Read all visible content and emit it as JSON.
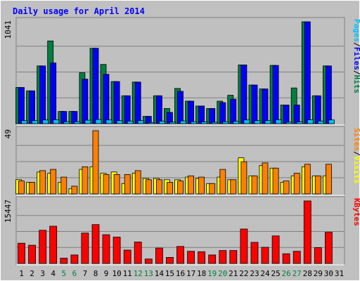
{
  "chart_data": {
    "type": "bar",
    "title": "Daily usage for April 2014",
    "days": [
      "1",
      "2",
      "3",
      "4",
      "5",
      "6",
      "7",
      "8",
      "9",
      "10",
      "11",
      "12",
      "13",
      "14",
      "15",
      "16",
      "17",
      "18",
      "19",
      "20",
      "21",
      "22",
      "23",
      "24",
      "25",
      "26",
      "27",
      "28",
      "29",
      "30",
      "31"
    ],
    "weekend_days": [
      "5",
      "6",
      "12",
      "13",
      "19",
      "20",
      "26",
      "27"
    ],
    "panels": [
      {
        "name": "hits-files-pages",
        "max_label": "1041",
        "max_value": 1041,
        "legend": [
          "Pages",
          "/",
          "Files",
          "/",
          "Hits"
        ],
        "legend_colors": [
          "#00c0ff",
          "#000000",
          "#0000ff",
          "#000000",
          "#008040"
        ],
        "series": [
          {
            "name": "Hits",
            "color": "#008040",
            "values": [
              370,
              335,
              590,
              845,
              125,
              125,
              520,
              770,
              605,
              430,
              285,
              425,
              75,
              285,
              155,
              360,
              230,
              180,
              155,
              230,
              290,
              600,
              395,
              355,
              595,
              190,
              365,
              1041,
              285,
              590,
              0
            ]
          },
          {
            "name": "Files",
            "color": "#0000ff",
            "values": [
              370,
              335,
              590,
              620,
              125,
              125,
              455,
              770,
              505,
              430,
              285,
              425,
              75,
              285,
              115,
              330,
              230,
              180,
              155,
              215,
              250,
              600,
              395,
              355,
              595,
              190,
              190,
              1041,
              285,
              590,
              0
            ]
          },
          {
            "name": "Pages",
            "color": "#00c0ff",
            "values": [
              30,
              30,
              38,
              40,
              20,
              20,
              35,
              42,
              38,
              30,
              25,
              30,
              12,
              25,
              16,
              28,
              20,
              18,
              14,
              20,
              24,
              38,
              30,
              30,
              40,
              16,
              18,
              40,
              26,
              38,
              0
            ]
          }
        ]
      },
      {
        "name": "visits-sites",
        "max_label": "49",
        "max_value": 49,
        "legend": [
          "Sites",
          "/",
          "Visits"
        ],
        "legend_colors": [
          "#ff8000",
          "#000000",
          "#ffff00"
        ],
        "series": [
          {
            "name": "Visits",
            "color": "#ffff00",
            "values": [
              11,
              9,
              17,
              16,
              9,
              4,
              19,
              21,
              16,
              17,
              8,
              16,
              12,
              12,
              11,
              11,
              13,
              12,
              8,
              13,
              11,
              28,
              14,
              22,
              20,
              9,
              14,
              21,
              14,
              14,
              0
            ]
          },
          {
            "name": "Sites",
            "color": "#ff8000",
            "values": [
              10,
              9,
              18,
              19,
              13,
              6,
              21,
              49,
              15,
              15,
              15,
              18,
              11,
              11,
              9,
              10,
              14,
              13,
              8,
              19,
              11,
              25,
              14,
              24,
              20,
              10,
              16,
              23,
              14,
              23,
              0
            ]
          }
        ]
      },
      {
        "name": "kbytes",
        "max_label": "15447",
        "max_value": 15447,
        "legend": [
          "KBytes"
        ],
        "legend_colors": [
          "#ff0000"
        ],
        "series": [
          {
            "name": "KBytes",
            "color": "#ff0000",
            "values": [
              5000,
              4500,
              8200,
              9200,
              1300,
              2100,
              7500,
              9600,
              7100,
              6500,
              3300,
              5300,
              1100,
              3800,
              1500,
              4200,
              3000,
              2900,
              2100,
              3200,
              3200,
              8500,
              5200,
              4000,
              6800,
              2400,
              3000,
              15447,
              3900,
              7700,
              0
            ]
          }
        ]
      }
    ]
  }
}
